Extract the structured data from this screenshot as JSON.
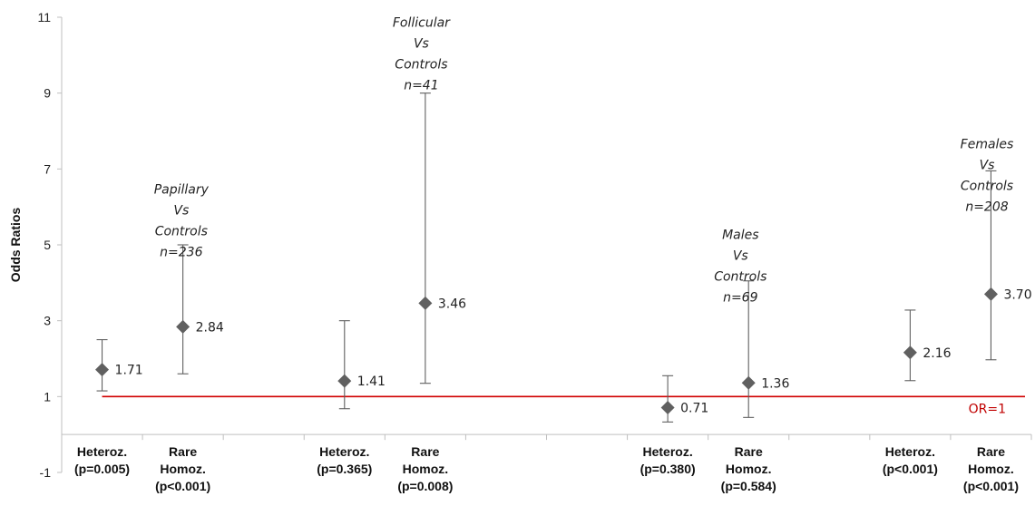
{
  "chart_data": {
    "type": "scatter",
    "ylabel": "Odds Ratios",
    "ylim": [
      -1,
      11
    ],
    "yticks": [
      "-1",
      "1",
      "3",
      "5",
      "7",
      "9",
      "11"
    ],
    "grid": false,
    "reference_line": {
      "value": 1,
      "label": "OR=1",
      "color": "#d00000"
    },
    "categories": [
      {
        "lines": [
          "Heteroz.",
          "(p=0.005)"
        ]
      },
      {
        "lines": [
          "Rare",
          "Homoz.",
          "(p<0.001)"
        ]
      },
      {
        "lines": []
      },
      {
        "lines": [
          "Heteroz.",
          "(p=0.365)"
        ]
      },
      {
        "lines": [
          "Rare",
          "Homoz.",
          "(p=0.008)"
        ]
      },
      {
        "lines": []
      },
      {
        "lines": []
      },
      {
        "lines": [
          "Heteroz.",
          "(p=0.380)"
        ]
      },
      {
        "lines": [
          "Rare",
          "Homoz.",
          "(p=0.584)"
        ]
      },
      {
        "lines": []
      },
      {
        "lines": [
          "Heteroz.",
          "(p<0.001)"
        ]
      },
      {
        "lines": [
          "Rare",
          "Homoz.",
          "(p<0.001)"
        ]
      }
    ],
    "points": [
      {
        "cat": 0,
        "or": 1.71,
        "lo": 1.15,
        "hi": 2.5,
        "label": "1.71"
      },
      {
        "cat": 1,
        "or": 2.84,
        "lo": 1.6,
        "hi": 5.0,
        "label": "2.84"
      },
      {
        "cat": 3,
        "or": 1.41,
        "lo": 0.68,
        "hi": 3.0,
        "label": "1.41"
      },
      {
        "cat": 4,
        "or": 3.46,
        "lo": 1.35,
        "hi": 9.0,
        "label": "3.46"
      },
      {
        "cat": 7,
        "or": 0.71,
        "lo": 0.33,
        "hi": 1.55,
        "label": "0.71"
      },
      {
        "cat": 8,
        "or": 1.36,
        "lo": 0.45,
        "hi": 4.05,
        "label": "1.36"
      },
      {
        "cat": 10,
        "or": 2.16,
        "lo": 1.42,
        "hi": 3.28,
        "label": "2.16"
      },
      {
        "cat": 11,
        "or": 3.7,
        "lo": 1.97,
        "hi": 6.95,
        "label": "3.70"
      }
    ],
    "group_annotations": [
      {
        "lines": [
          "Papillary",
          "Vs",
          "Controls",
          "n=236"
        ],
        "x_cat": 0.98,
        "top_value": 6.35
      },
      {
        "lines": [
          "Follicular",
          "Vs",
          "Controls",
          "n=41"
        ],
        "x_cat": 3.95,
        "top_value": 10.75
      },
      {
        "lines": [
          "Males",
          "Vs",
          "Controls",
          "n=69"
        ],
        "x_cat": 7.9,
        "top_value": 5.15
      },
      {
        "lines": [
          "Females",
          "Vs",
          "Controls",
          "n=208"
        ],
        "x_cat": 10.95,
        "top_value": 7.55
      }
    ],
    "marker_color": "#606060",
    "errorbar_color": "#606060"
  }
}
